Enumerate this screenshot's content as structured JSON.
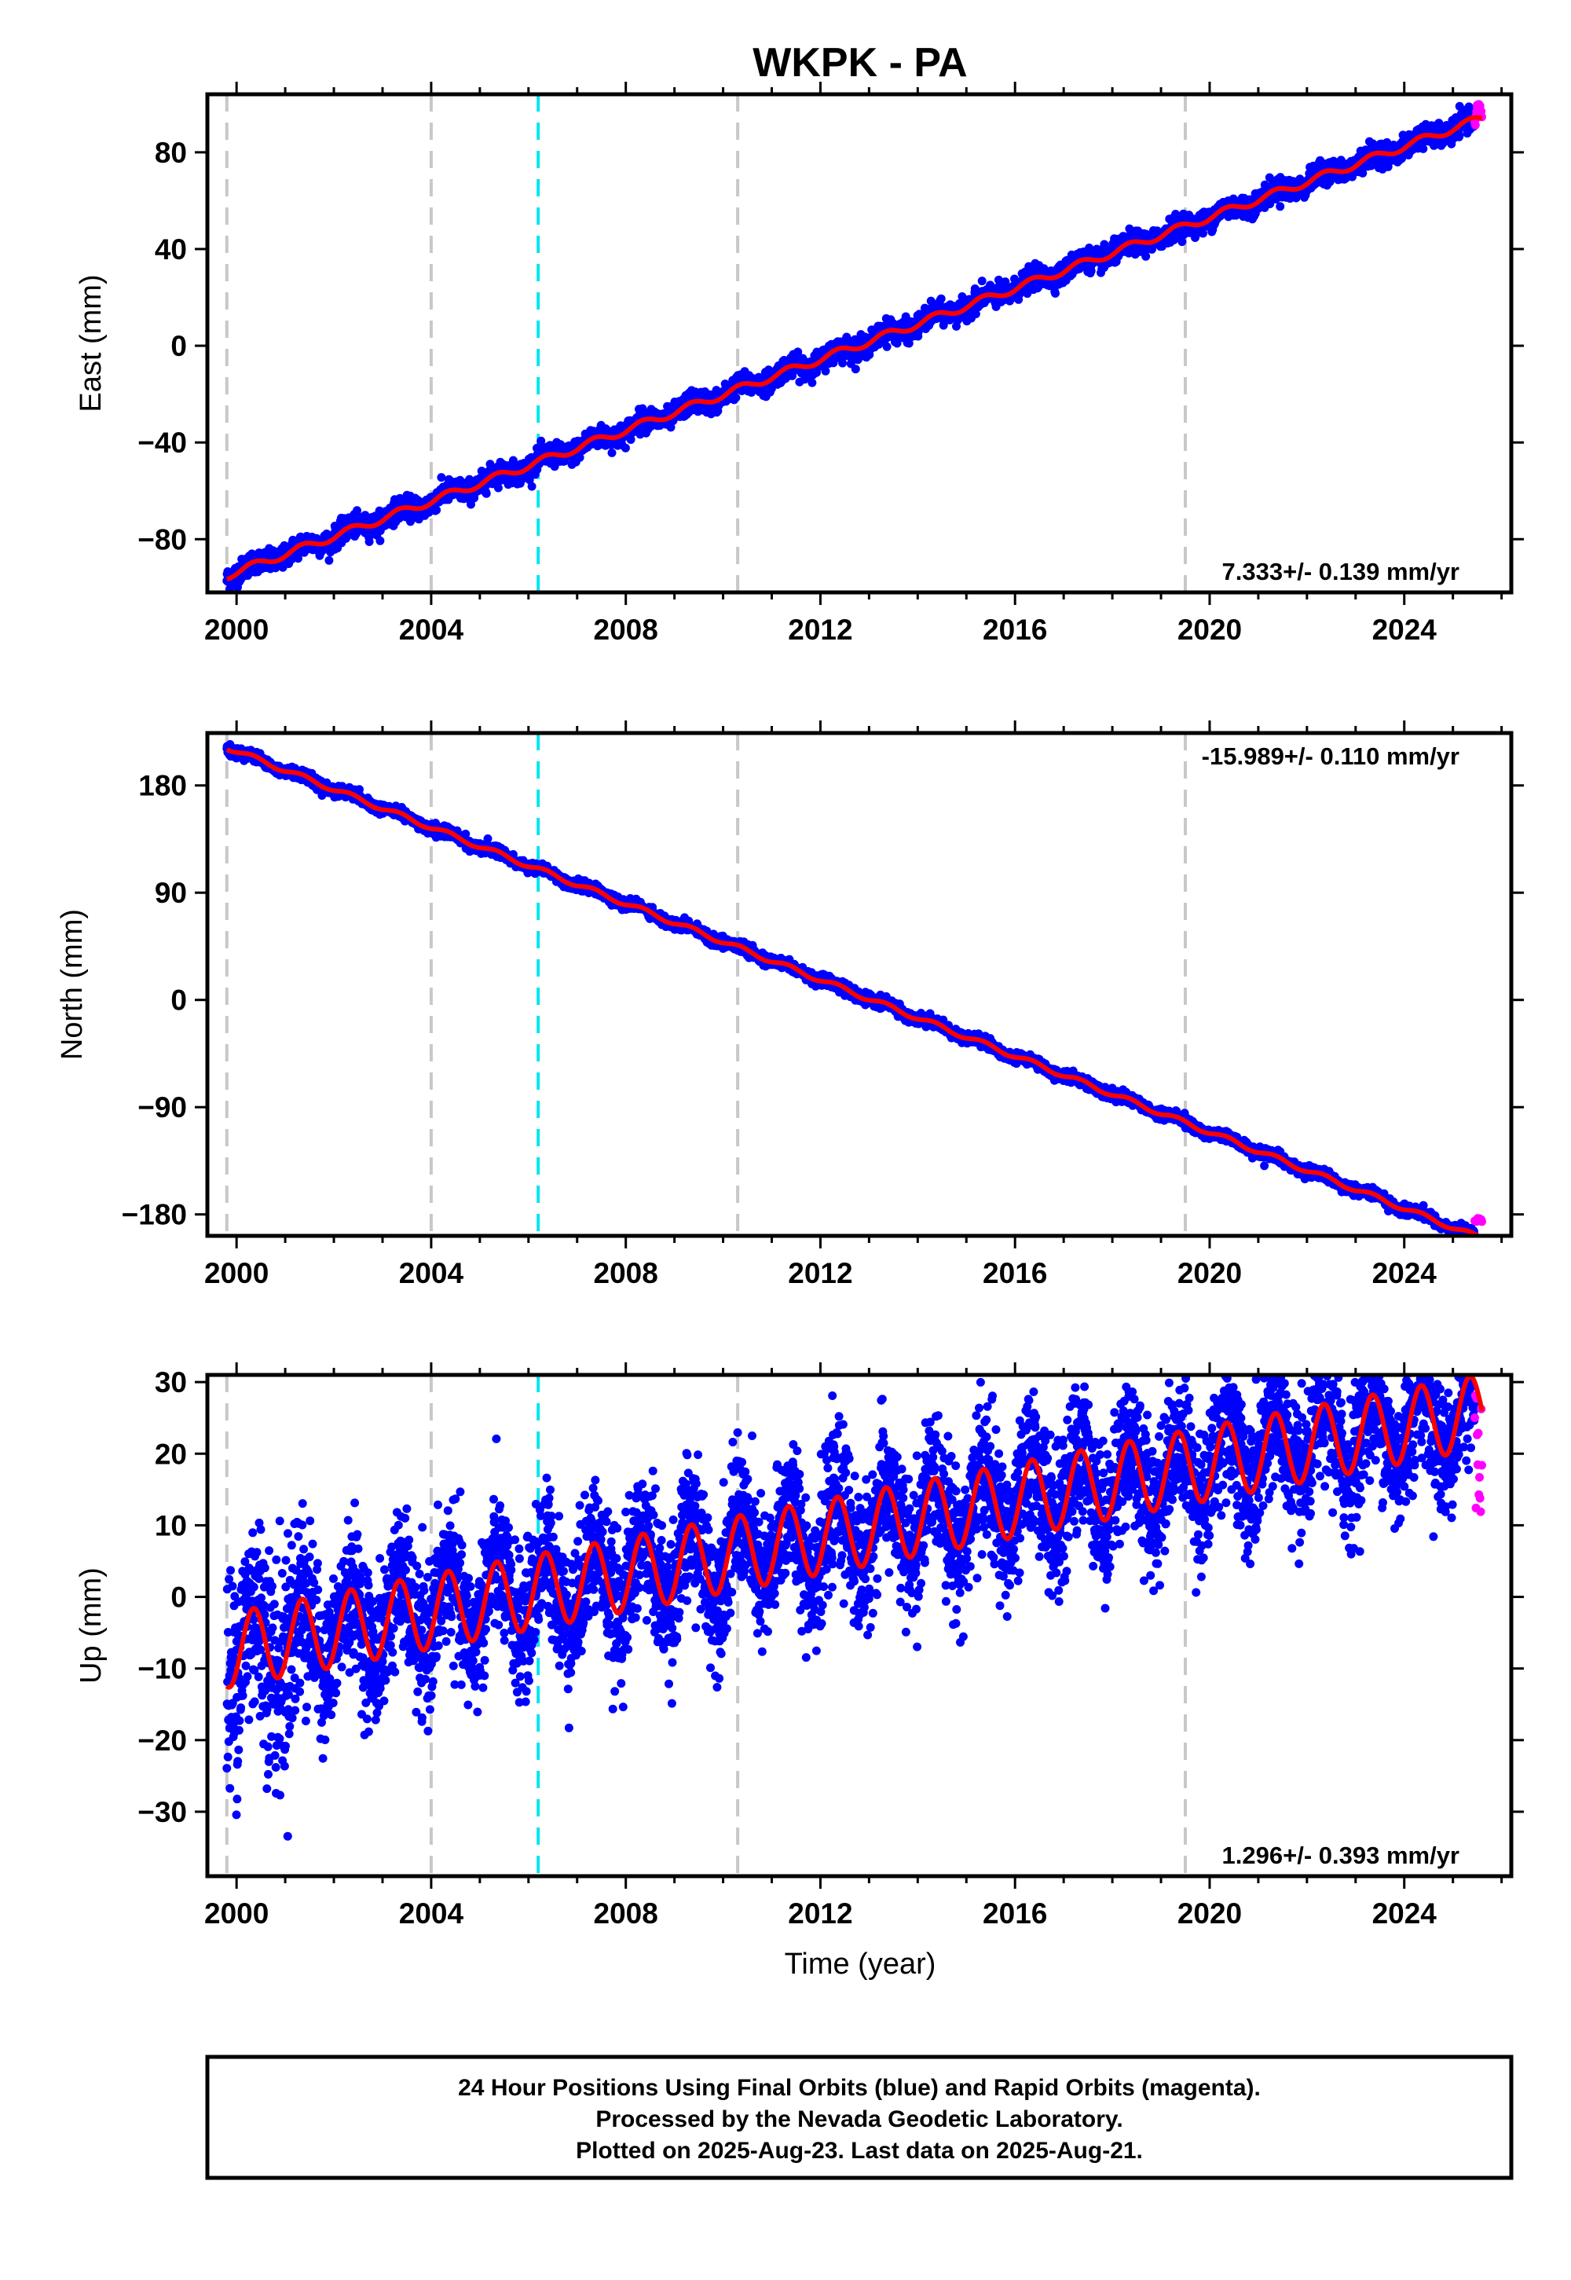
{
  "title": "WKPK - PA",
  "xlabel": "Time (year)",
  "x_tick_labels": [
    "2000",
    "2004",
    "2008",
    "2012",
    "2016",
    "2020",
    "2024"
  ],
  "colors": {
    "final_orbits": "#0000ff",
    "rapid_orbits": "#ff00ff",
    "model": "#ff0000",
    "equipment_change": "#c8c8c8",
    "event": "#00e5ee"
  },
  "footer": {
    "line1": "24 Hour Positions Using Final Orbits (blue) and Rapid Orbits (magenta).",
    "line2": "Processed by the Nevada Geodetic Laboratory.",
    "line3": "Plotted on 2025-Aug-23. Last data on 2025-Aug-21."
  },
  "chart_data": [
    {
      "type": "scatter",
      "panel": "east",
      "ylabel": "East (mm)",
      "rate_text": "7.333+/- 0.139 mm/yr",
      "rate_position": "bottom-right",
      "xlim": [
        1999.4,
        2026.2
      ],
      "ylim": [
        -102,
        104
      ],
      "y_ticks": [
        -80,
        -40,
        0,
        40,
        80
      ],
      "y_tick_labels": [
        "−80",
        "−40",
        "0",
        "40",
        "80"
      ],
      "x_ticks": [
        2000,
        2004,
        2008,
        2012,
        2016,
        2020,
        2024
      ],
      "equipment_change_lines": [
        1999.8,
        2004.0,
        2010.3,
        2019.5
      ],
      "event_lines": [
        2006.2
      ],
      "rate_mm_per_yr": 7.333,
      "start_year": 1999.8,
      "end_year": 2025.6,
      "model_start": -95,
      "seasonal_amplitude": 1.6,
      "noise": 2.2,
      "rapid_start": 2025.45,
      "rapid_level": [
        91,
        100
      ]
    },
    {
      "type": "scatter",
      "panel": "north",
      "ylabel": "North (mm)",
      "rate_text": "-15.989+/- 0.110 mm/yr",
      "rate_position": "top-right",
      "xlim": [
        1999.4,
        2026.2
      ],
      "ylim": [
        -198,
        224
      ],
      "y_ticks": [
        -180,
        -90,
        0,
        90,
        180
      ],
      "y_tick_labels": [
        "−180",
        "−90",
        "0",
        "90",
        "180"
      ],
      "x_ticks": [
        2000,
        2004,
        2008,
        2012,
        2016,
        2020,
        2024
      ],
      "equipment_change_lines": [
        1999.8,
        2004.0,
        2010.3,
        2019.5
      ],
      "event_lines": [
        2006.2
      ],
      "rate_mm_per_yr": -15.989,
      "start_year": 1999.8,
      "end_year": 2025.6,
      "model_start": 212,
      "seasonal_amplitude": 2.0,
      "noise": 2.2,
      "rapid_start": 2025.45,
      "rapid_level": [
        -186,
        -183
      ]
    },
    {
      "type": "scatter",
      "panel": "up",
      "ylabel": "Up (mm)",
      "rate_text": "1.296+/- 0.393 mm/yr",
      "rate_position": "bottom-right",
      "xlim": [
        1999.4,
        2026.2
      ],
      "ylim": [
        -39,
        31
      ],
      "y_ticks": [
        -30,
        -20,
        -10,
        0,
        10,
        20,
        30
      ],
      "y_tick_labels": [
        "−30",
        "−20",
        "−10",
        "0",
        "10",
        "20",
        "30"
      ],
      "x_ticks": [
        2000,
        2004,
        2008,
        2012,
        2016,
        2020,
        2024
      ],
      "equipment_change_lines": [
        1999.8,
        2004.0,
        2010.3,
        2019.5
      ],
      "event_lines": [
        2006.2
      ],
      "rate_mm_per_yr": 1.296,
      "start_year": 1999.8,
      "end_year": 2025.6,
      "model_start": -7.5,
      "seasonal_amplitude": 5.2,
      "noise": 4.8,
      "rapid_start": 2025.45,
      "rapid_level": [
        7,
        29
      ]
    }
  ]
}
